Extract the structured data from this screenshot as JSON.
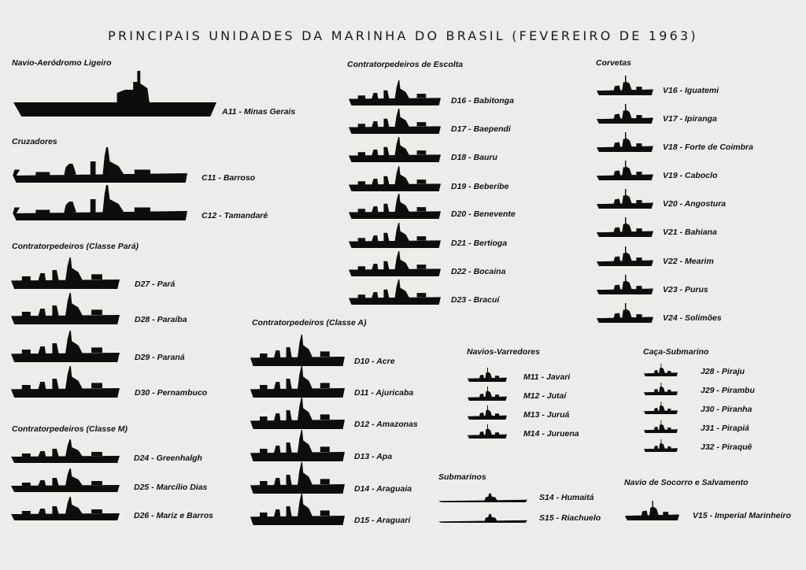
{
  "title": "PRINCIPAIS UNIDADES DA MARINHA DO BRASIL (FEVEREIRO DE 1963)",
  "groups": [
    {
      "heading": "Navio-Aeródromo Ligeiro",
      "ships": [
        "A11 - Minas Gerais"
      ]
    },
    {
      "heading": "Cruzadores",
      "ships": [
        "C11 - Barroso",
        "C12 - Tamandaré"
      ]
    },
    {
      "heading": "Contratorpedeiros (Classe Pará)",
      "ships": [
        "D27 - Pará",
        "D28 - Paraíba",
        "D29 - Paraná",
        "D30 - Pernambuco"
      ]
    },
    {
      "heading": "Contratorpedeiros (Classe M)",
      "ships": [
        "D24 - Greenhalgh",
        "D25 - Marcílio Dias",
        "D26 - Mariz e Barros"
      ]
    },
    {
      "heading": "Contratorpedeiros (Classe A)",
      "ships": [
        "D10 - Acre",
        "D11 - Ajuricaba",
        "D12 - Amazonas",
        "D13 - Apa",
        "D14 - Araguaia",
        "D15 - Araguari"
      ]
    },
    {
      "heading": "Contratorpedeiros de Escolta",
      "ships": [
        "D16 - Babitonga",
        "D17 - Baependi",
        "D18 - Bauru",
        "D19 - Beberibe",
        "D20 - Benevente",
        "D21 - Bertioga",
        "D22 - Bocaina",
        "D23 - Bracuí"
      ]
    },
    {
      "heading": "Corvetas",
      "ships": [
        "V16 - Iguatemi",
        "V17 - Ipiranga",
        "V18 - Forte de Coimbra",
        "V19 - Caboclo",
        "V20 - Angostura",
        "V21 - Bahiana",
        "V22 - Mearim",
        "V23 - Purus",
        "V24 - Solimões"
      ]
    },
    {
      "heading": "Navios-Varredores",
      "ships": [
        "M11 - Javari",
        "M12 - Jutaí",
        "M13 - Juruá",
        "M14 - Juruena"
      ]
    },
    {
      "heading": "Caça-Submarino",
      "ships": [
        "J28 - Piraju",
        "J29 - Pirambu",
        "J30 - Piranha",
        "J31 - Pirapiá",
        "J32 - Piraquê"
      ]
    },
    {
      "heading": "Submarinos",
      "ships": [
        "S14 - Humaitá",
        "S15 - Riachuelo"
      ]
    },
    {
      "heading": "Navio de Socorro e Salvamento",
      "ships": [
        "V15 - Imperial Marinheiro"
      ]
    }
  ]
}
